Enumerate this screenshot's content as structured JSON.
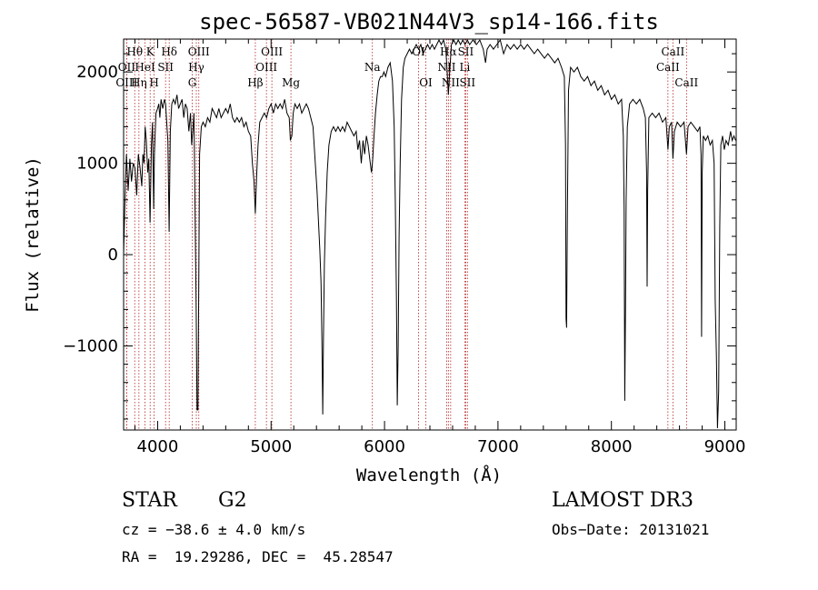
{
  "chart_data": {
    "type": "line",
    "title": "spec-56587-VB021N44V3_sp14-166.fits",
    "xlabel": "Wavelength (Å)",
    "ylabel": "Flux (relative)",
    "xlim": [
      3700,
      9100
    ],
    "ylim": [
      -1920,
      2360
    ],
    "xticks": [
      {
        "v": 4000,
        "label": "4000"
      },
      {
        "v": 5000,
        "label": "5000"
      },
      {
        "v": 6000,
        "label": "6000"
      },
      {
        "v": 7000,
        "label": "7000"
      },
      {
        "v": 8000,
        "label": "8000"
      },
      {
        "v": 9000,
        "label": "9000"
      }
    ],
    "yticks": [
      {
        "v": -1000,
        "label": "−1000"
      },
      {
        "v": 0,
        "label": "0"
      },
      {
        "v": 1000,
        "label": "1000"
      },
      {
        "v": 2000,
        "label": "2000"
      }
    ],
    "line_color": "#000000",
    "marker_color": "#b22222",
    "spectrum": [
      [
        3700,
        0
      ],
      [
        3712,
        600
      ],
      [
        3725,
        1100
      ],
      [
        3740,
        700
      ],
      [
        3755,
        1050
      ],
      [
        3770,
        800
      ],
      [
        3785,
        1000
      ],
      [
        3800,
        950
      ],
      [
        3815,
        650
      ],
      [
        3830,
        1100
      ],
      [
        3845,
        950
      ],
      [
        3860,
        750
      ],
      [
        3870,
        1100
      ],
      [
        3880,
        1000
      ],
      [
        3890,
        1400
      ],
      [
        3900,
        1250
      ],
      [
        3912,
        900
      ],
      [
        3922,
        1050
      ],
      [
        3933,
        350
      ],
      [
        3945,
        1200
      ],
      [
        3955,
        1450
      ],
      [
        3965,
        500
      ],
      [
        3972,
        1100
      ],
      [
        3985,
        1550
      ],
      [
        4000,
        1600
      ],
      [
        4010,
        1650
      ],
      [
        4020,
        1500
      ],
      [
        4030,
        1700
      ],
      [
        4045,
        1600
      ],
      [
        4060,
        1700
      ],
      [
        4070,
        1650
      ],
      [
        4080,
        1450
      ],
      [
        4090,
        1250
      ],
      [
        4101,
        250
      ],
      [
        4112,
        1350
      ],
      [
        4125,
        1650
      ],
      [
        4140,
        1700
      ],
      [
        4155,
        1650
      ],
      [
        4170,
        1750
      ],
      [
        4185,
        1600
      ],
      [
        4200,
        1650
      ],
      [
        4215,
        1700
      ],
      [
        4230,
        1500
      ],
      [
        4245,
        1650
      ],
      [
        4260,
        1600
      ],
      [
        4275,
        1350
      ],
      [
        4290,
        1550
      ],
      [
        4300,
        1200
      ],
      [
        4310,
        1350
      ],
      [
        4320,
        1550
      ],
      [
        4340,
        -650
      ],
      [
        4347,
        -1700
      ],
      [
        4355,
        -1700
      ],
      [
        4362,
        -450
      ],
      [
        4370,
        1100
      ],
      [
        4385,
        1400
      ],
      [
        4400,
        1450
      ],
      [
        4420,
        1400
      ],
      [
        4440,
        1500
      ],
      [
        4460,
        1450
      ],
      [
        4480,
        1600
      ],
      [
        4500,
        1550
      ],
      [
        4520,
        1500
      ],
      [
        4540,
        1600
      ],
      [
        4560,
        1500
      ],
      [
        4580,
        1550
      ],
      [
        4600,
        1600
      ],
      [
        4620,
        1550
      ],
      [
        4640,
        1650
      ],
      [
        4660,
        1500
      ],
      [
        4680,
        1450
      ],
      [
        4700,
        1500
      ],
      [
        4720,
        1450
      ],
      [
        4740,
        1500
      ],
      [
        4760,
        1400
      ],
      [
        4780,
        1450
      ],
      [
        4800,
        1350
      ],
      [
        4820,
        1300
      ],
      [
        4835,
        1000
      ],
      [
        4850,
        800
      ],
      [
        4861,
        450
      ],
      [
        4872,
        850
      ],
      [
        4885,
        1200
      ],
      [
        4900,
        1450
      ],
      [
        4920,
        1500
      ],
      [
        4940,
        1550
      ],
      [
        4960,
        1500
      ],
      [
        4980,
        1600
      ],
      [
        5000,
        1650
      ],
      [
        5020,
        1550
      ],
      [
        5040,
        1650
      ],
      [
        5060,
        1600
      ],
      [
        5080,
        1650
      ],
      [
        5100,
        1600
      ],
      [
        5120,
        1700
      ],
      [
        5140,
        1550
      ],
      [
        5160,
        1500
      ],
      [
        5170,
        1250
      ],
      [
        5183,
        1300
      ],
      [
        5195,
        1550
      ],
      [
        5210,
        1650
      ],
      [
        5230,
        1600
      ],
      [
        5250,
        1650
      ],
      [
        5270,
        1550
      ],
      [
        5290,
        1600
      ],
      [
        5310,
        1650
      ],
      [
        5330,
        1600
      ],
      [
        5350,
        1500
      ],
      [
        5370,
        1400
      ],
      [
        5390,
        1000
      ],
      [
        5405,
        700
      ],
      [
        5420,
        300
      ],
      [
        5430,
        50
      ],
      [
        5440,
        -300
      ],
      [
        5448,
        -950
      ],
      [
        5455,
        -1750
      ],
      [
        5462,
        -900
      ],
      [
        5470,
        -100
      ],
      [
        5480,
        400
      ],
      [
        5495,
        900
      ],
      [
        5510,
        1200
      ],
      [
        5530,
        1350
      ],
      [
        5550,
        1400
      ],
      [
        5570,
        1350
      ],
      [
        5590,
        1400
      ],
      [
        5610,
        1350
      ],
      [
        5630,
        1400
      ],
      [
        5650,
        1350
      ],
      [
        5670,
        1450
      ],
      [
        5690,
        1400
      ],
      [
        5710,
        1350
      ],
      [
        5730,
        1300
      ],
      [
        5750,
        1350
      ],
      [
        5765,
        1150
      ],
      [
        5780,
        1250
      ],
      [
        5795,
        1000
      ],
      [
        5810,
        1250
      ],
      [
        5825,
        1100
      ],
      [
        5840,
        1300
      ],
      [
        5855,
        1200
      ],
      [
        5870,
        1050
      ],
      [
        5885,
        900
      ],
      [
        5890,
        950
      ],
      [
        5896,
        1050
      ],
      [
        5905,
        1250
      ],
      [
        5920,
        1550
      ],
      [
        5935,
        1750
      ],
      [
        5950,
        1900
      ],
      [
        5965,
        1950
      ],
      [
        5980,
        1950
      ],
      [
        5995,
        2000
      ],
      [
        6010,
        1950
      ],
      [
        6030,
        2050
      ],
      [
        6050,
        2100
      ],
      [
        6070,
        1900
      ],
      [
        6085,
        1400
      ],
      [
        6095,
        600
      ],
      [
        6105,
        -500
      ],
      [
        6112,
        -1650
      ],
      [
        6120,
        -1000
      ],
      [
        6128,
        200
      ],
      [
        6138,
        1000
      ],
      [
        6150,
        1700
      ],
      [
        6165,
        2050
      ],
      [
        6180,
        2150
      ],
      [
        6200,
        2200
      ],
      [
        6220,
        2250
      ],
      [
        6240,
        2200
      ],
      [
        6260,
        2250
      ],
      [
        6280,
        2300
      ],
      [
        6300,
        2250
      ],
      [
        6320,
        2300
      ],
      [
        6340,
        2200
      ],
      [
        6360,
        2250
      ],
      [
        6380,
        2300
      ],
      [
        6400,
        2250
      ],
      [
        6420,
        2300
      ],
      [
        6440,
        2250
      ],
      [
        6460,
        2300
      ],
      [
        6480,
        2350
      ],
      [
        6500,
        2300
      ],
      [
        6520,
        2350
      ],
      [
        6540,
        2250
      ],
      [
        6552,
        2000
      ],
      [
        6563,
        1750
      ],
      [
        6574,
        2000
      ],
      [
        6590,
        2300
      ],
      [
        6610,
        2350
      ],
      [
        6630,
        2300
      ],
      [
        6650,
        2350
      ],
      [
        6670,
        2300
      ],
      [
        6690,
        2350
      ],
      [
        6710,
        2300
      ],
      [
        6730,
        2350
      ],
      [
        6750,
        2300
      ],
      [
        6780,
        2350
      ],
      [
        6810,
        2300
      ],
      [
        6840,
        2350
      ],
      [
        6870,
        2250
      ],
      [
        6890,
        2100
      ],
      [
        6905,
        2250
      ],
      [
        6930,
        2300
      ],
      [
        6960,
        2250
      ],
      [
        6990,
        2300
      ],
      [
        7020,
        2350
      ],
      [
        7050,
        2200
      ],
      [
        7080,
        2300
      ],
      [
        7110,
        2250
      ],
      [
        7140,
        2300
      ],
      [
        7170,
        2250
      ],
      [
        7200,
        2300
      ],
      [
        7230,
        2250
      ],
      [
        7260,
        2300
      ],
      [
        7290,
        2250
      ],
      [
        7320,
        2200
      ],
      [
        7350,
        2250
      ],
      [
        7380,
        2200
      ],
      [
        7410,
        2150
      ],
      [
        7440,
        2200
      ],
      [
        7470,
        2150
      ],
      [
        7500,
        2100
      ],
      [
        7530,
        2150
      ],
      [
        7560,
        2050
      ],
      [
        7585,
        1950
      ],
      [
        7595,
        1200
      ],
      [
        7600,
        -700
      ],
      [
        7605,
        -800
      ],
      [
        7612,
        500
      ],
      [
        7622,
        1800
      ],
      [
        7640,
        2050
      ],
      [
        7670,
        2000
      ],
      [
        7700,
        2050
      ],
      [
        7730,
        1950
      ],
      [
        7760,
        1900
      ],
      [
        7790,
        1950
      ],
      [
        7820,
        1850
      ],
      [
        7850,
        1900
      ],
      [
        7880,
        1800
      ],
      [
        7910,
        1850
      ],
      [
        7940,
        1750
      ],
      [
        7970,
        1800
      ],
      [
        8000,
        1700
      ],
      [
        8030,
        1750
      ],
      [
        8060,
        1650
      ],
      [
        8090,
        1700
      ],
      [
        8105,
        1300
      ],
      [
        8112,
        500
      ],
      [
        8118,
        -1600
      ],
      [
        8124,
        -600
      ],
      [
        8130,
        600
      ],
      [
        8140,
        1400
      ],
      [
        8160,
        1650
      ],
      [
        8190,
        1700
      ],
      [
        8220,
        1650
      ],
      [
        8250,
        1700
      ],
      [
        8280,
        1600
      ],
      [
        8300,
        1500
      ],
      [
        8310,
        900
      ],
      [
        8315,
        -350
      ],
      [
        8320,
        700
      ],
      [
        8330,
        1500
      ],
      [
        8360,
        1550
      ],
      [
        8390,
        1500
      ],
      [
        8420,
        1550
      ],
      [
        8450,
        1450
      ],
      [
        8480,
        1500
      ],
      [
        8498,
        1150
      ],
      [
        8510,
        1400
      ],
      [
        8530,
        1450
      ],
      [
        8542,
        1050
      ],
      [
        8555,
        1350
      ],
      [
        8580,
        1450
      ],
      [
        8610,
        1400
      ],
      [
        8640,
        1450
      ],
      [
        8662,
        1100
      ],
      [
        8675,
        1400
      ],
      [
        8700,
        1450
      ],
      [
        8730,
        1400
      ],
      [
        8760,
        1350
      ],
      [
        8780,
        1400
      ],
      [
        8790,
        1100
      ],
      [
        8795,
        -900
      ],
      [
        8800,
        900
      ],
      [
        8810,
        1300
      ],
      [
        8830,
        1250
      ],
      [
        8850,
        1300
      ],
      [
        8870,
        1200
      ],
      [
        8890,
        1250
      ],
      [
        8905,
        1000
      ],
      [
        8915,
        -500
      ],
      [
        8925,
        -1100
      ],
      [
        8935,
        -1900
      ],
      [
        8945,
        -1500
      ],
      [
        8955,
        300
      ],
      [
        8965,
        1200
      ],
      [
        8980,
        1300
      ],
      [
        8995,
        1150
      ],
      [
        9010,
        1250
      ],
      [
        9030,
        1200
      ],
      [
        9050,
        1350
      ],
      [
        9065,
        1250
      ],
      [
        9080,
        1300
      ],
      [
        9095,
        1250
      ]
    ],
    "line_markers": [
      {
        "label": "Hθ",
        "x": 3798,
        "row": 0
      },
      {
        "label": "OII",
        "x": 3727,
        "row": 1
      },
      {
        "label": "OIII",
        "x": 3727,
        "row": 2
      },
      {
        "label": "Hη",
        "x": 3835,
        "row": 2
      },
      {
        "label": "HeI",
        "x": 3889,
        "row": 1
      },
      {
        "label": "K",
        "x": 3934,
        "row": 0
      },
      {
        "label": "SII",
        "x": 4070,
        "row": 1
      },
      {
        "label": "H",
        "x": 3969,
        "row": 2
      },
      {
        "label": "Hδ",
        "x": 4102,
        "row": 0
      },
      {
        "label": "OIII",
        "x": 4363,
        "row": 0
      },
      {
        "label": "Hγ",
        "x": 4341,
        "row": 1
      },
      {
        "label": "G",
        "x": 4305,
        "row": 2
      },
      {
        "label": "Hβ",
        "x": 4861,
        "row": 2
      },
      {
        "label": "OIII",
        "x": 5007,
        "row": 0
      },
      {
        "label": "OIII",
        "x": 4959,
        "row": 1
      },
      {
        "label": "Mg",
        "x": 5175,
        "row": 2
      },
      {
        "label": "Na",
        "x": 5893,
        "row": 1
      },
      {
        "label": "OI",
        "x": 6300,
        "row": 0
      },
      {
        "label": "OI",
        "x": 6364,
        "row": 2
      },
      {
        "label": "Hα",
        "x": 6563,
        "row": 0
      },
      {
        "label": "SII",
        "x": 6716,
        "row": 0
      },
      {
        "label": "NII",
        "x": 6548,
        "row": 1
      },
      {
        "label": "Li",
        "x": 6708,
        "row": 1
      },
      {
        "label": "NII",
        "x": 6583,
        "row": 2
      },
      {
        "label": "SII",
        "x": 6731,
        "row": 2
      },
      {
        "label": "CaII",
        "x": 8542,
        "row": 0
      },
      {
        "label": "CaII",
        "x": 8498,
        "row": 1
      },
      {
        "label": "CaII",
        "x": 8662,
        "row": 2
      }
    ]
  },
  "info": {
    "class_label": "STAR",
    "subclass": "G2",
    "survey": "LAMOST DR3",
    "cz": "cz = −38.6 ± 4.0 km/s",
    "obs_date": "Obs−Date: 20131021",
    "radec": "RA =  19.29286, DEC =  45.28547"
  }
}
